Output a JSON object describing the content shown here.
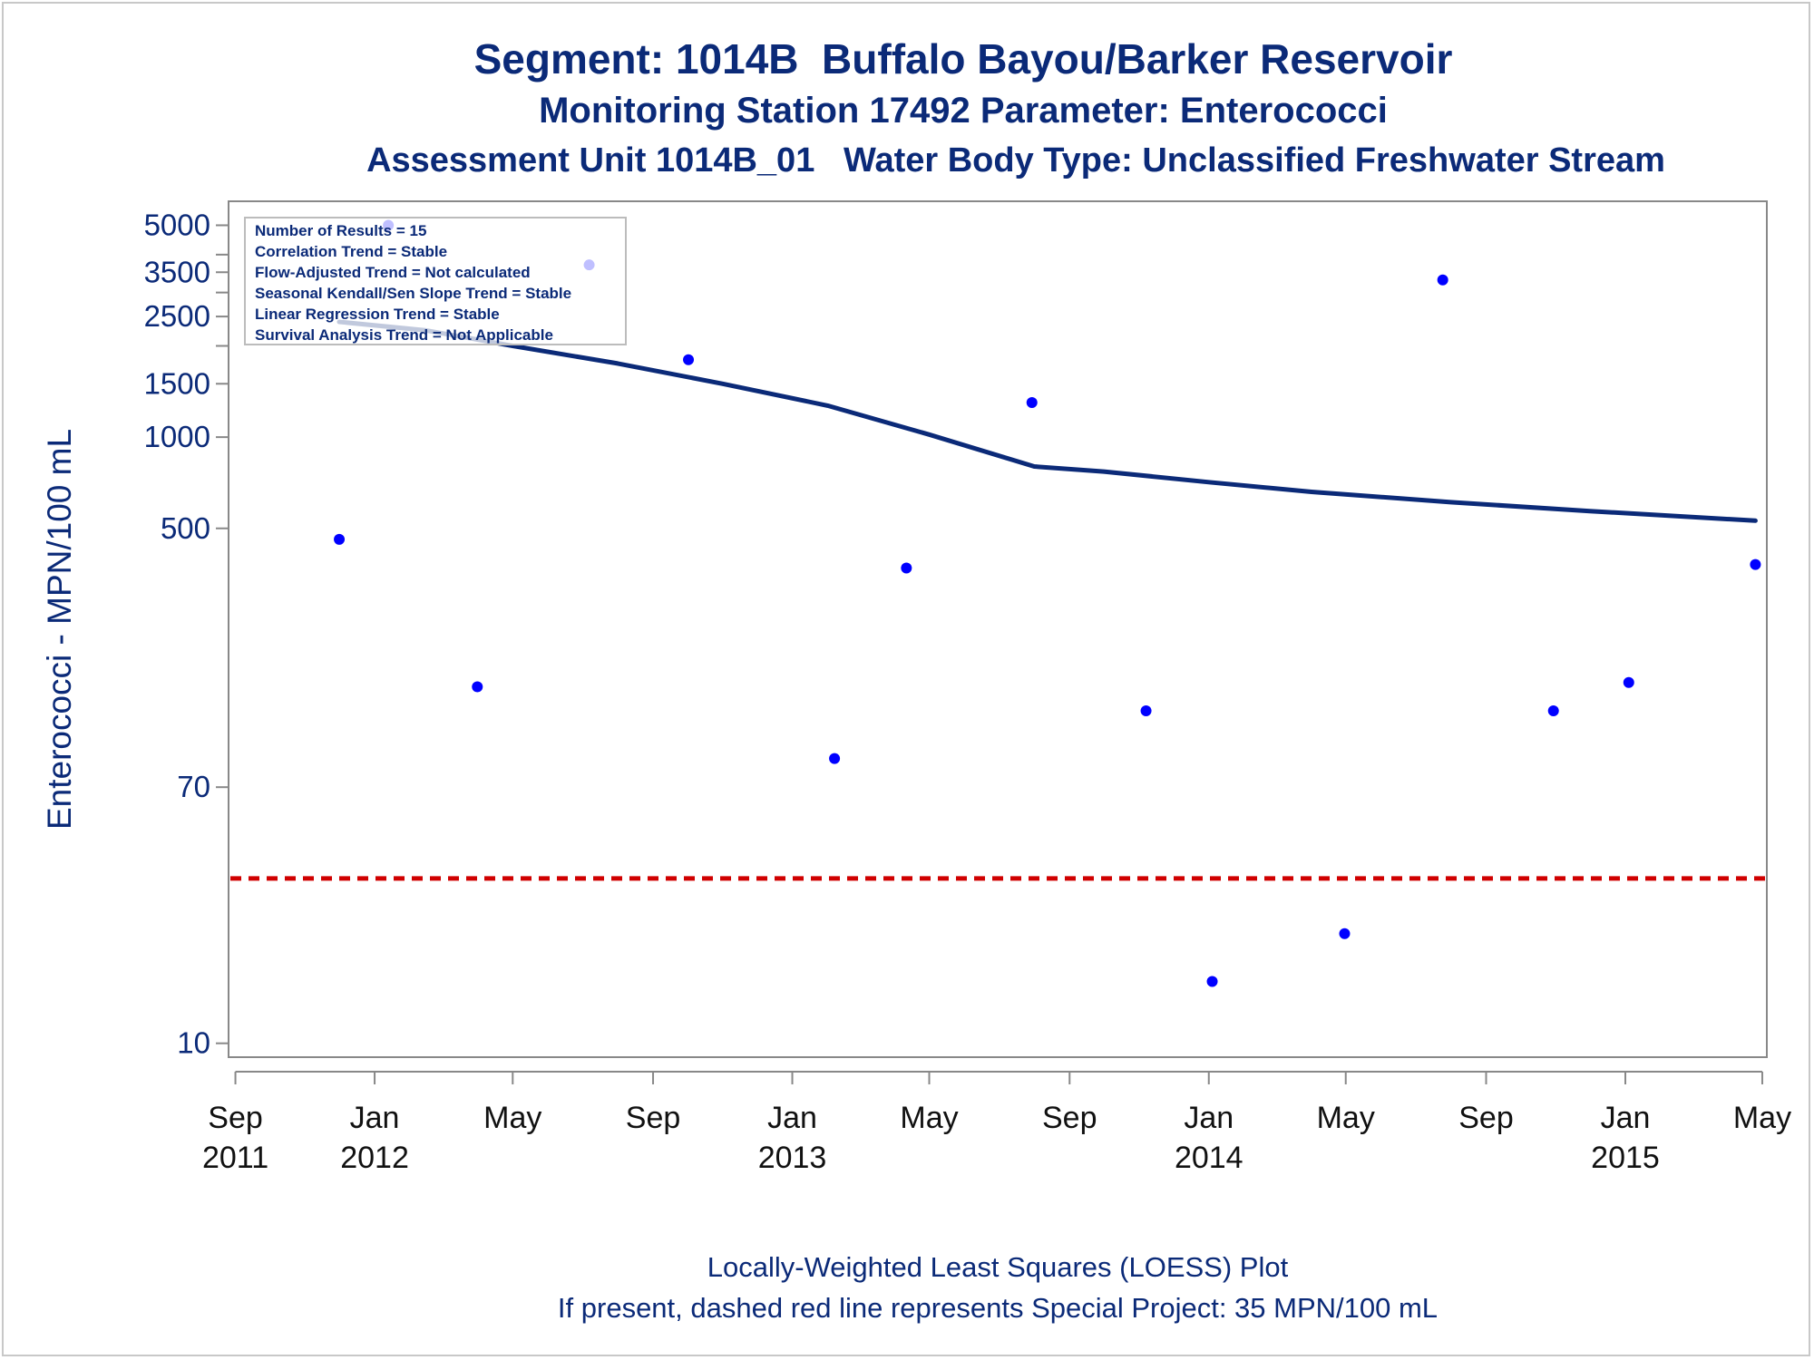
{
  "titles": {
    "line1": "Segment: 1014B  Buffalo Bayou/Barker Reservoir",
    "line2": "Monitoring Station 17492 Parameter: Enterococci",
    "line3": "Assessment Unit 1014B_01   Water Body Type: Unclassified Freshwater Stream"
  },
  "footnotes": {
    "line1": "Locally-Weighted Least Squares (LOESS) Plot",
    "line2": "If present, dashed red line represents Special Project: 35 MPN/100 mL"
  },
  "chart_data": {
    "type": "scatter",
    "ylabel": "Enterococci - MPN/100 mL",
    "xlabel": "",
    "y_scale": "log",
    "ylim": [
      9,
      6000
    ],
    "xlim": [
      "2011-08-26",
      "2015-05-05"
    ],
    "yticks": [
      10,
      70,
      500,
      1000,
      1500,
      2500,
      3500,
      5000
    ],
    "yticks_minor": [
      2000,
      3000,
      4000
    ],
    "xticks": [
      {
        "date": "2011-09-01",
        "label_month": "Sep",
        "label_year": "2011"
      },
      {
        "date": "2012-01-01",
        "label_month": "Jan",
        "label_year": "2012"
      },
      {
        "date": "2012-05-01",
        "label_month": "May",
        "label_year": ""
      },
      {
        "date": "2012-09-01",
        "label_month": "Sep",
        "label_year": ""
      },
      {
        "date": "2013-01-01",
        "label_month": "Jan",
        "label_year": "2013"
      },
      {
        "date": "2013-05-01",
        "label_month": "May",
        "label_year": ""
      },
      {
        "date": "2013-09-01",
        "label_month": "Sep",
        "label_year": ""
      },
      {
        "date": "2014-01-01",
        "label_month": "Jan",
        "label_year": "2014"
      },
      {
        "date": "2014-05-01",
        "label_month": "May",
        "label_year": ""
      },
      {
        "date": "2014-09-01",
        "label_month": "Sep",
        "label_year": ""
      },
      {
        "date": "2015-01-01",
        "label_month": "Jan",
        "label_year": "2015"
      },
      {
        "date": "2015-05-01",
        "label_month": "May",
        "label_year": ""
      }
    ],
    "points": [
      {
        "x": "2011-12-01",
        "y": 460
      },
      {
        "x": "2012-01-13",
        "y": 5000
      },
      {
        "x": "2012-03-31",
        "y": 150
      },
      {
        "x": "2012-07-07",
        "y": 3700
      },
      {
        "x": "2012-10-02",
        "y": 1800
      },
      {
        "x": "2013-02-07",
        "y": 87
      },
      {
        "x": "2013-04-11",
        "y": 370
      },
      {
        "x": "2013-07-30",
        "y": 1300
      },
      {
        "x": "2013-11-07",
        "y": 125
      },
      {
        "x": "2014-01-04",
        "y": 16
      },
      {
        "x": "2014-04-30",
        "y": 23
      },
      {
        "x": "2014-07-25",
        "y": 3300
      },
      {
        "x": "2014-10-30",
        "y": 125
      },
      {
        "x": "2015-01-04",
        "y": 155
      },
      {
        "x": "2015-04-25",
        "y": 380
      }
    ],
    "loess_line": [
      {
        "x": "2011-12-01",
        "y": 2400
      },
      {
        "x": "2012-02-15",
        "y": 2250
      },
      {
        "x": "2012-05-01",
        "y": 2000
      },
      {
        "x": "2012-08-01",
        "y": 1750
      },
      {
        "x": "2012-11-01",
        "y": 1500
      },
      {
        "x": "2013-02-01",
        "y": 1270
      },
      {
        "x": "2013-05-01",
        "y": 1020
      },
      {
        "x": "2013-08-01",
        "y": 800
      },
      {
        "x": "2013-10-01",
        "y": 770
      },
      {
        "x": "2014-01-01",
        "y": 710
      },
      {
        "x": "2014-04-01",
        "y": 660
      },
      {
        "x": "2014-08-01",
        "y": 610
      },
      {
        "x": "2014-12-01",
        "y": 570
      },
      {
        "x": "2015-04-25",
        "y": 530
      }
    ],
    "reference_line": {
      "y": 35,
      "color": "#d00000",
      "style": "dashed"
    },
    "legend": {
      "placement": "top-left",
      "lines": [
        "Number of Results = 15",
        "Correlation Trend = Stable",
        "Flow-Adjusted Trend = Not calculated",
        "Seasonal Kendall/Sen Slope Trend = Stable",
        "Linear Regression Trend = Stable",
        "Survival Analysis Trend = Not Applicable"
      ]
    },
    "colors": {
      "text": "#0b2a78",
      "points": "#0000ff",
      "loess": "#0b2a78",
      "reference": "#d00000",
      "axis": "#888888"
    },
    "grid": false
  }
}
